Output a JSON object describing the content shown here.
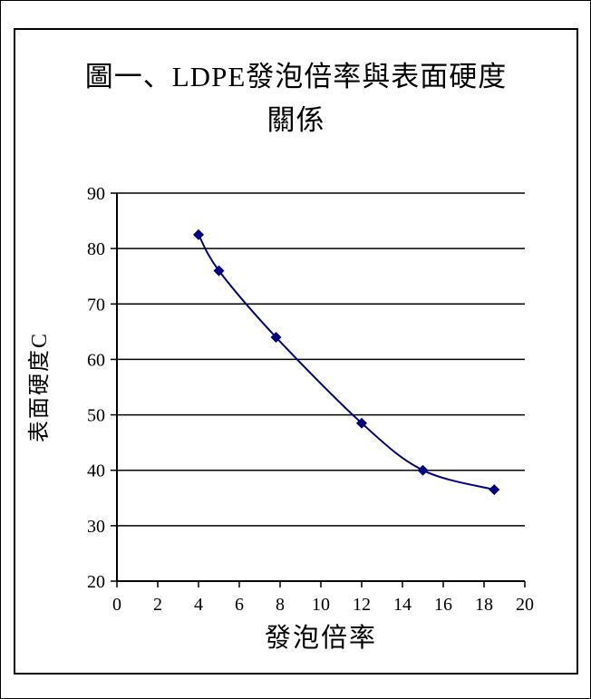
{
  "chart_data": {
    "type": "line",
    "title": "圖一、LDPE發泡倍率與表面硬度關係",
    "xlabel": "發泡倍率",
    "ylabel": "表面硬度C",
    "x": [
      4,
      5,
      7.8,
      12,
      15,
      18.5
    ],
    "y": [
      82.5,
      76,
      64,
      48.5,
      40,
      36.5
    ],
    "xlim": [
      0,
      20
    ],
    "ylim": [
      20,
      90
    ],
    "xticks": [
      0,
      2,
      4,
      6,
      8,
      10,
      12,
      14,
      16,
      18,
      20
    ],
    "yticks": [
      20,
      30,
      40,
      50,
      60,
      70,
      80,
      90
    ],
    "grid": "horizontal",
    "legend": "none",
    "marker": "diamond",
    "line_color": "#000080",
    "marker_color": "#000080",
    "axis_color": "#000000",
    "background_color": "#ffffff"
  }
}
